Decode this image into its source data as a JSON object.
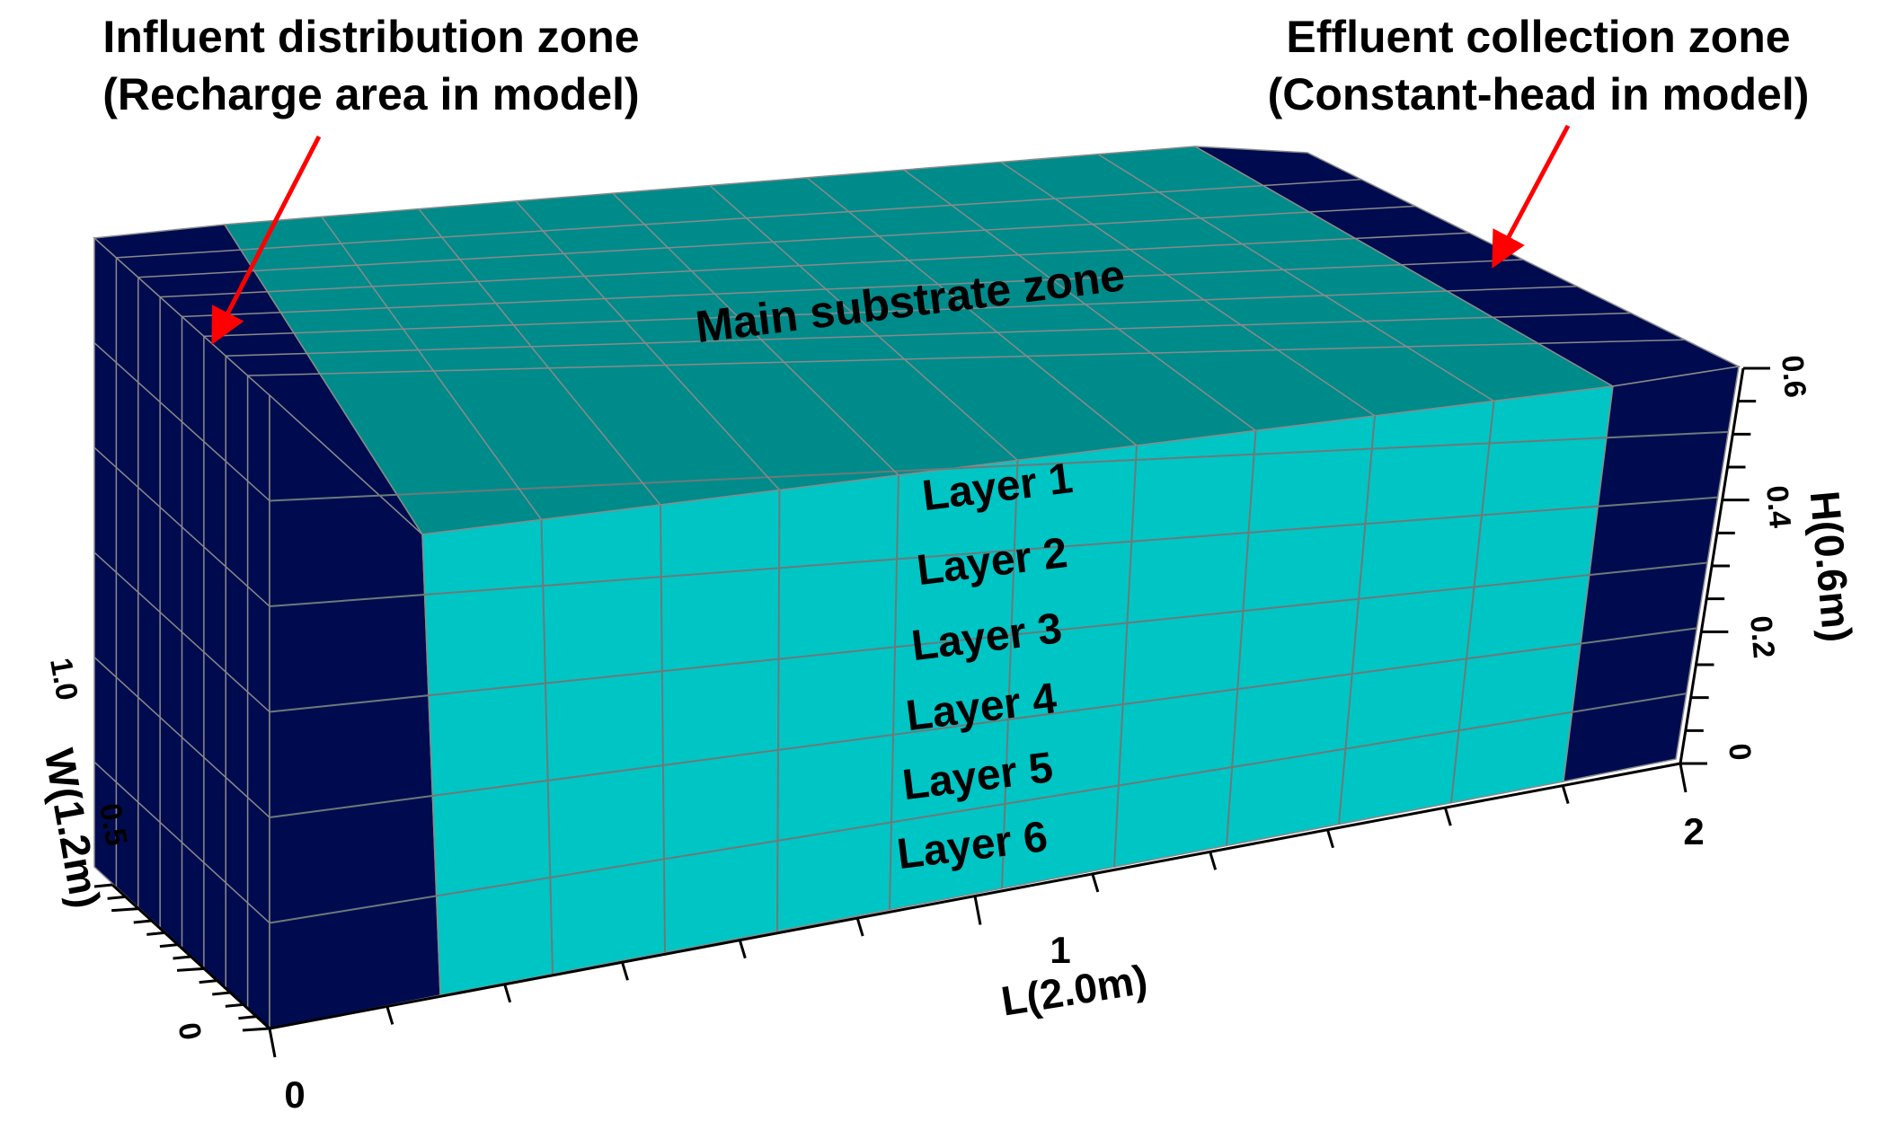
{
  "annotations": {
    "influent_line1": "Influent distribution zone",
    "influent_line2": "(Recharge area in model)",
    "effluent_line1": "Effluent collection zone",
    "effluent_line2": "(Constant-head in model)",
    "main_zone": "Main substrate zone"
  },
  "layers": [
    "Layer 1",
    "Layer 2",
    "Layer 3",
    "Layer 4",
    "Layer 5",
    "Layer 6"
  ],
  "axes": {
    "length": {
      "title": "L(2.0m)",
      "ticks": [
        "0",
        "1",
        "2"
      ]
    },
    "width": {
      "title": "W(1.2m)",
      "ticks": [
        "0",
        "0.5",
        "1.0"
      ]
    },
    "height": {
      "title": "H(0.6m)",
      "ticks": [
        "0",
        "0.2",
        "0.4",
        "0.6"
      ]
    }
  },
  "colors": {
    "boundary_zone": "#000b4f",
    "main_front": "#00c5c5",
    "main_top": "#008b8b",
    "grid_line": "#6b7a7a",
    "arrow": "#ff0000"
  }
}
